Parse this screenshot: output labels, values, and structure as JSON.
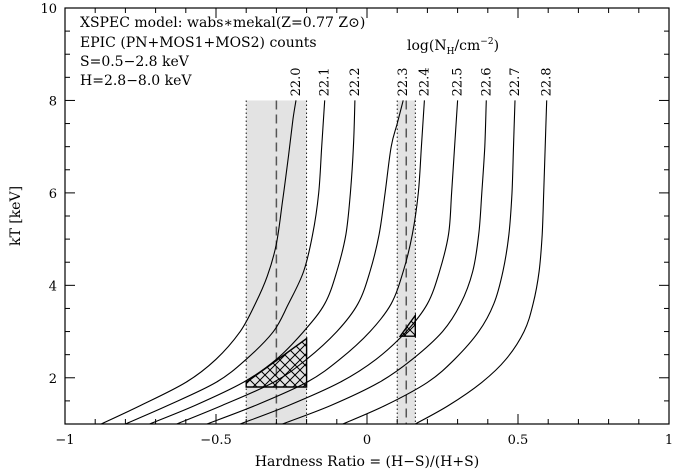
{
  "chart_data": {
    "type": "line",
    "xlabel": "Hardness Ratio = (H−S)/(H+S)",
    "ylabel": "kT [keV]",
    "xlim": [
      -1,
      1
    ],
    "ylim": [
      1,
      10
    ],
    "x_ticks": [
      -1,
      -0.5,
      0,
      0.5,
      1
    ],
    "x_tick_labels": [
      "−1",
      "−0.5",
      "0",
      "0.5",
      "1"
    ],
    "y_ticks": [
      2,
      4,
      6,
      8,
      10
    ],
    "y_tick_labels": [
      "2",
      "4",
      "6",
      "8",
      "10"
    ],
    "grid": false,
    "annotations": [
      "XSPEC model: wabs∗mekal(Z=0.77 Z⊙)",
      "EPIC (PN+MOS1+MOS2) counts",
      "S=0.5−2.8 keV",
      "H=2.8−8.0 keV"
    ],
    "curve_family_label": "log(N_H/cm⁻²)",
    "curve_family_label_parts": {
      "pre": "log(N",
      "sub": "H",
      "mid": "/cm",
      "sup": "−2",
      "post": ")"
    },
    "series": [
      {
        "name": "22.0",
        "points": [
          [
            -0.88,
            1.0
          ],
          [
            -0.75,
            1.4
          ],
          [
            -0.6,
            1.9
          ],
          [
            -0.5,
            2.4
          ],
          [
            -0.42,
            3.0
          ],
          [
            -0.37,
            3.6
          ],
          [
            -0.33,
            4.2
          ],
          [
            -0.3,
            4.9
          ],
          [
            -0.28,
            5.8
          ],
          [
            -0.26,
            6.8
          ],
          [
            -0.245,
            7.6
          ],
          [
            -0.235,
            8.0
          ]
        ]
      },
      {
        "name": "22.1",
        "points": [
          [
            -0.8,
            1.0
          ],
          [
            -0.66,
            1.4
          ],
          [
            -0.5,
            1.9
          ],
          [
            -0.4,
            2.4
          ],
          [
            -0.31,
            3.0
          ],
          [
            -0.26,
            3.6
          ],
          [
            -0.21,
            4.3
          ],
          [
            -0.18,
            5.1
          ],
          [
            -0.16,
            6.0
          ],
          [
            -0.15,
            7.0
          ],
          [
            -0.14,
            8.0
          ]
        ]
      },
      {
        "name": "22.2",
        "points": [
          [
            -0.72,
            1.0
          ],
          [
            -0.57,
            1.4
          ],
          [
            -0.41,
            1.9
          ],
          [
            -0.3,
            2.4
          ],
          [
            -0.21,
            3.0
          ],
          [
            -0.14,
            3.6
          ],
          [
            -0.1,
            4.3
          ],
          [
            -0.07,
            5.1
          ],
          [
            -0.055,
            6.0
          ],
          [
            -0.045,
            7.0
          ],
          [
            -0.04,
            8.0
          ]
        ]
      },
      {
        "name": "22.3",
        "points": [
          [
            -0.63,
            1.0
          ],
          [
            -0.48,
            1.4
          ],
          [
            -0.31,
            1.9
          ],
          [
            -0.2,
            2.4
          ],
          [
            -0.1,
            3.0
          ],
          [
            -0.03,
            3.6
          ],
          [
            0.01,
            4.3
          ],
          [
            0.04,
            5.1
          ],
          [
            0.06,
            6.0
          ],
          [
            0.08,
            7.0
          ],
          [
            0.1,
            7.5
          ],
          [
            0.12,
            8.0
          ]
        ]
      },
      {
        "name": "22.4",
        "points": [
          [
            -0.53,
            1.0
          ],
          [
            -0.37,
            1.4
          ],
          [
            -0.2,
            1.9
          ],
          [
            -0.09,
            2.4
          ],
          [
            0.01,
            3.0
          ],
          [
            0.08,
            3.6
          ],
          [
            0.12,
            4.3
          ],
          [
            0.15,
            5.1
          ],
          [
            0.17,
            6.0
          ],
          [
            0.18,
            7.0
          ],
          [
            0.19,
            8.0
          ]
        ]
      },
      {
        "name": "22.5",
        "points": [
          [
            -0.42,
            1.0
          ],
          [
            -0.26,
            1.4
          ],
          [
            -0.09,
            1.9
          ],
          [
            0.03,
            2.4
          ],
          [
            0.13,
            3.0
          ],
          [
            0.2,
            3.6
          ],
          [
            0.24,
            4.3
          ],
          [
            0.27,
            5.1
          ],
          [
            0.28,
            6.0
          ],
          [
            0.29,
            7.0
          ],
          [
            0.3,
            8.0
          ]
        ]
      },
      {
        "name": "22.6",
        "points": [
          [
            -0.28,
            1.0
          ],
          [
            -0.12,
            1.4
          ],
          [
            0.04,
            1.9
          ],
          [
            0.15,
            2.4
          ],
          [
            0.25,
            3.0
          ],
          [
            0.31,
            3.6
          ],
          [
            0.35,
            4.3
          ],
          [
            0.37,
            5.1
          ],
          [
            0.38,
            6.0
          ],
          [
            0.39,
            7.0
          ],
          [
            0.395,
            8.0
          ]
        ]
      },
      {
        "name": "22.7",
        "points": [
          [
            -0.08,
            1.0
          ],
          [
            0.06,
            1.4
          ],
          [
            0.2,
            1.9
          ],
          [
            0.29,
            2.4
          ],
          [
            0.37,
            3.0
          ],
          [
            0.42,
            3.6
          ],
          [
            0.45,
            4.3
          ],
          [
            0.47,
            5.1
          ],
          [
            0.48,
            6.0
          ],
          [
            0.485,
            7.0
          ],
          [
            0.49,
            8.0
          ]
        ]
      },
      {
        "name": "22.8",
        "points": [
          [
            0.16,
            1.0
          ],
          [
            0.27,
            1.4
          ],
          [
            0.38,
            1.9
          ],
          [
            0.46,
            2.4
          ],
          [
            0.52,
            3.0
          ],
          [
            0.55,
            3.6
          ],
          [
            0.57,
            4.3
          ],
          [
            0.58,
            5.1
          ],
          [
            0.585,
            6.0
          ],
          [
            0.59,
            7.0
          ],
          [
            0.595,
            8.0
          ]
        ]
      }
    ],
    "shaded_bands": [
      {
        "x_range": [
          -0.4,
          -0.2
        ],
        "y_range": [
          1,
          8
        ],
        "center_x": -0.3
      },
      {
        "x_range": [
          0.1,
          0.16
        ],
        "y_range": [
          1,
          8
        ],
        "center_x": 0.13
      }
    ],
    "hatched_regions": [
      {
        "polygon": [
          [
            -0.4,
            1.8
          ],
          [
            -0.2,
            1.8
          ],
          [
            -0.2,
            2.85
          ],
          [
            -0.4,
            1.9
          ]
        ]
      },
      {
        "polygon": [
          [
            0.11,
            2.9
          ],
          [
            0.16,
            2.9
          ],
          [
            0.16,
            3.35
          ]
        ]
      }
    ]
  }
}
